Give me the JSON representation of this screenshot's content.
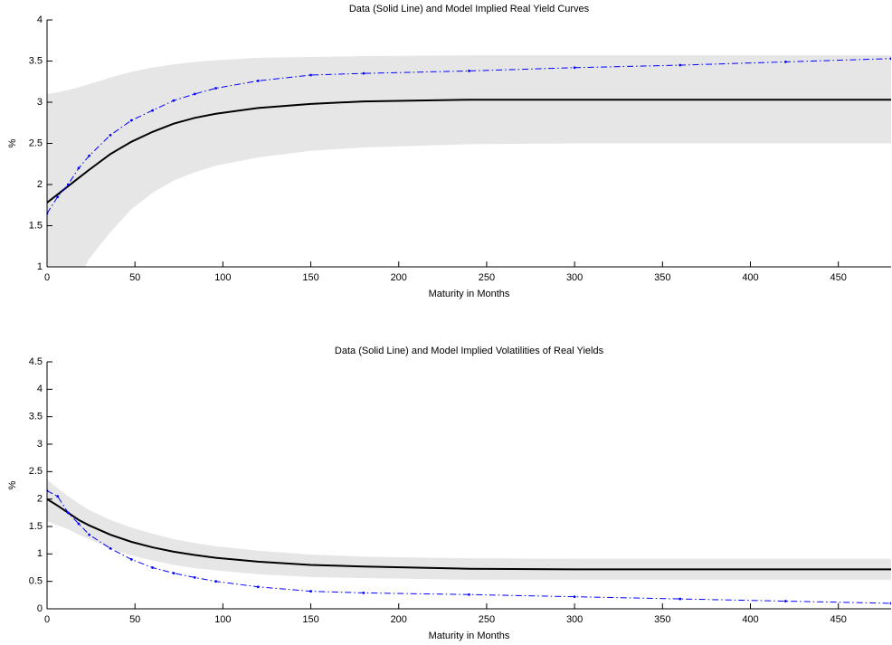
{
  "chart_data": [
    {
      "type": "line",
      "title": "Data (Solid Line) and Model Implied Real Yield Curves",
      "xlabel": "Maturity in Months",
      "ylabel": "%",
      "x": [
        0,
        6,
        12,
        18,
        24,
        36,
        48,
        60,
        72,
        84,
        96,
        120,
        150,
        180,
        240,
        300,
        360,
        420,
        480
      ],
      "series": [
        {
          "color": "#000000",
          "style": "solid",
          "values": [
            1.78,
            1.88,
            1.98,
            2.08,
            2.18,
            2.37,
            2.52,
            2.64,
            2.74,
            2.81,
            2.86,
            2.93,
            2.98,
            3.01,
            3.03,
            3.03,
            3.03,
            3.03,
            3.03
          ]
        },
        {
          "color": "#0000ff",
          "style": "dashdot",
          "values": [
            1.65,
            1.85,
            2.0,
            2.2,
            2.35,
            2.6,
            2.78,
            2.9,
            3.02,
            3.1,
            3.17,
            3.26,
            3.33,
            3.35,
            3.38,
            3.42,
            3.45,
            3.49,
            3.53
          ]
        }
      ],
      "band": {
        "color": "#e6e6e6",
        "upper": [
          3.1,
          3.12,
          3.15,
          3.18,
          3.22,
          3.3,
          3.37,
          3.42,
          3.46,
          3.49,
          3.51,
          3.54,
          3.55,
          3.56,
          3.57,
          3.57,
          3.57,
          3.57,
          3.57
        ],
        "lower": [
          0.3,
          0.45,
          0.6,
          0.85,
          1.1,
          1.42,
          1.7,
          1.9,
          2.05,
          2.15,
          2.23,
          2.33,
          2.41,
          2.45,
          2.49,
          2.5,
          2.5,
          2.5,
          2.5
        ]
      },
      "xlim": [
        0,
        480
      ],
      "xticks": [
        0,
        50,
        100,
        150,
        200,
        250,
        300,
        350,
        400,
        450
      ],
      "ylim": [
        1,
        4
      ],
      "yticks": [
        1,
        1.5,
        2,
        2.5,
        3,
        3.5,
        4
      ]
    },
    {
      "type": "line",
      "title": "Data (Solid Line) and Model Implied Volatilities of Real Yields",
      "xlabel": "Maturity in Months",
      "ylabel": "%",
      "x": [
        0,
        6,
        12,
        18,
        24,
        36,
        48,
        60,
        72,
        84,
        96,
        120,
        150,
        180,
        240,
        300,
        360,
        420,
        480
      ],
      "series": [
        {
          "color": "#000000",
          "style": "solid",
          "values": [
            2.0,
            1.88,
            1.75,
            1.62,
            1.52,
            1.35,
            1.22,
            1.12,
            1.04,
            0.98,
            0.93,
            0.86,
            0.8,
            0.77,
            0.73,
            0.72,
            0.72,
            0.72,
            0.72
          ]
        },
        {
          "color": "#0000ff",
          "style": "dashdot",
          "values": [
            2.15,
            2.05,
            1.75,
            1.55,
            1.35,
            1.1,
            0.9,
            0.75,
            0.65,
            0.57,
            0.5,
            0.4,
            0.32,
            0.29,
            0.26,
            0.22,
            0.18,
            0.14,
            0.1
          ]
        }
      ],
      "band": {
        "color": "#e6e6e6",
        "upper": [
          2.35,
          2.2,
          2.05,
          1.92,
          1.8,
          1.62,
          1.48,
          1.37,
          1.27,
          1.2,
          1.14,
          1.06,
          0.99,
          0.95,
          0.92,
          0.91,
          0.91,
          0.91,
          0.91
        ],
        "lower": [
          1.6,
          1.52,
          1.45,
          1.35,
          1.27,
          1.1,
          0.97,
          0.88,
          0.8,
          0.74,
          0.7,
          0.63,
          0.58,
          0.56,
          0.53,
          0.53,
          0.53,
          0.53,
          0.53
        ]
      },
      "xlim": [
        0,
        480
      ],
      "xticks": [
        0,
        50,
        100,
        150,
        200,
        250,
        300,
        350,
        400,
        450
      ],
      "ylim": [
        0,
        4.5
      ],
      "yticks": [
        0,
        0.5,
        1,
        1.5,
        2,
        2.5,
        3,
        3.5,
        4,
        4.5
      ]
    }
  ]
}
